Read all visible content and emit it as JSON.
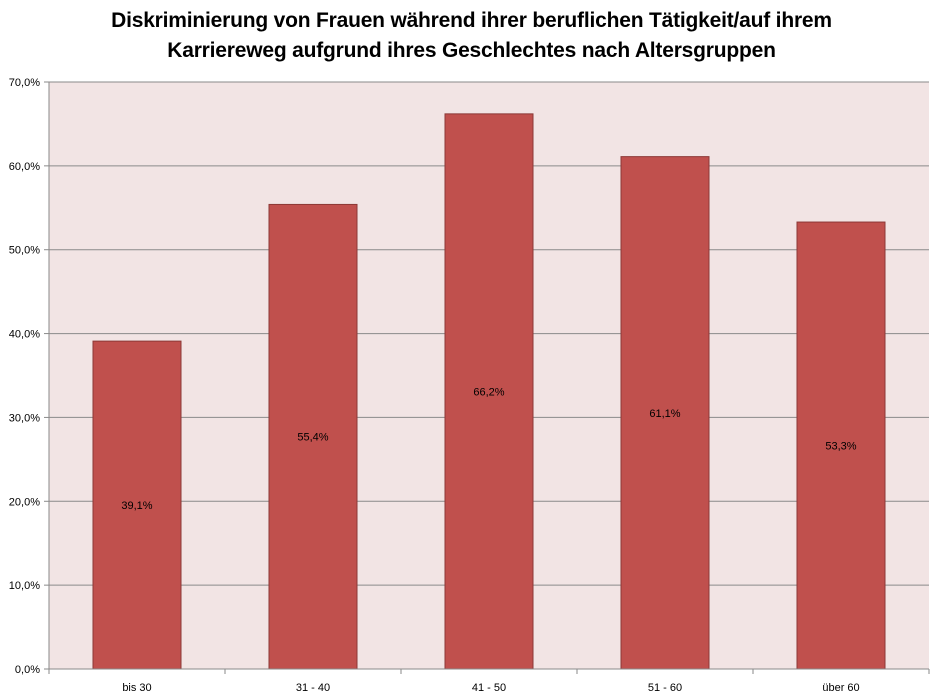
{
  "chart_data": {
    "type": "bar",
    "title_lines": [
      "Diskriminierung von Frauen während ihrer beruflichen Tätigkeit/auf ihrem",
      "Karriereweg aufgrund ihres Geschlechtes nach Altersgruppen"
    ],
    "categories": [
      "bis 30",
      "31 - 40",
      "41 - 50",
      "51 - 60",
      "über 60"
    ],
    "values": [
      39.1,
      55.4,
      66.2,
      61.1,
      53.3
    ],
    "data_labels": [
      "39,1%",
      "55,4%",
      "66,2%",
      "61,1%",
      "53,3%"
    ],
    "y_ticks": [
      0,
      10,
      20,
      30,
      40,
      50,
      60,
      70
    ],
    "y_tick_labels": [
      "0,0%",
      "10,0%",
      "20,0%",
      "30,0%",
      "40,0%",
      "50,0%",
      "60,0%",
      "70,0%"
    ],
    "ylim": [
      0,
      70
    ],
    "grid": true,
    "legend": "none",
    "colors": {
      "bar": "#c0504d",
      "bar_border": "#8c3836",
      "plot_background": "#f2e4e4",
      "gridline": "#8a8a8a",
      "axis": "#8a8a8a"
    }
  }
}
